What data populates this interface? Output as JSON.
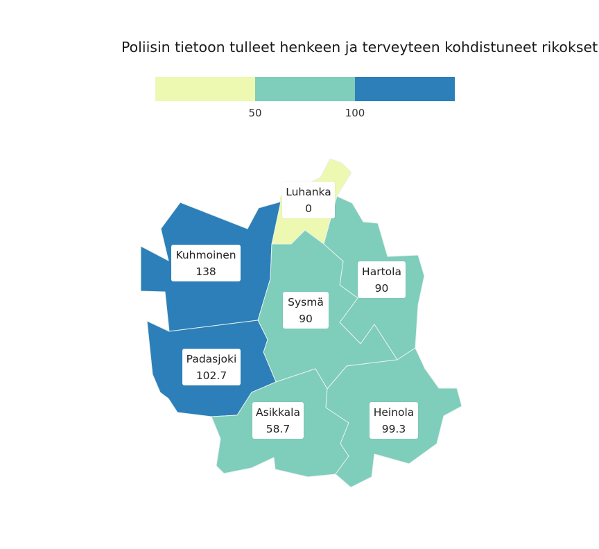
{
  "title": "Poliisin tietoon tulleet henkeen ja terveyteen kohdistuneet rikokset",
  "legend": {
    "ticks": [
      "50",
      "100"
    ],
    "colors": [
      "#edf8b1",
      "#7fcdbb",
      "#2c7fb8"
    ]
  },
  "municipalities": [
    {
      "name": "Luhanka",
      "value": "0",
      "color": "#edf8b1"
    },
    {
      "name": "Kuhmoinen",
      "value": "138",
      "color": "#2c7fb8"
    },
    {
      "name": "Hartola",
      "value": "90",
      "color": "#7fcdbb"
    },
    {
      "name": "Sysmä",
      "value": "90",
      "color": "#7fcdbb"
    },
    {
      "name": "Padasjoki",
      "value": "102.7",
      "color": "#2c7fb8"
    },
    {
      "name": "Asikkala",
      "value": "58.7",
      "color": "#7fcdbb"
    },
    {
      "name": "Heinola",
      "value": "99.3",
      "color": "#7fcdbb"
    }
  ]
}
